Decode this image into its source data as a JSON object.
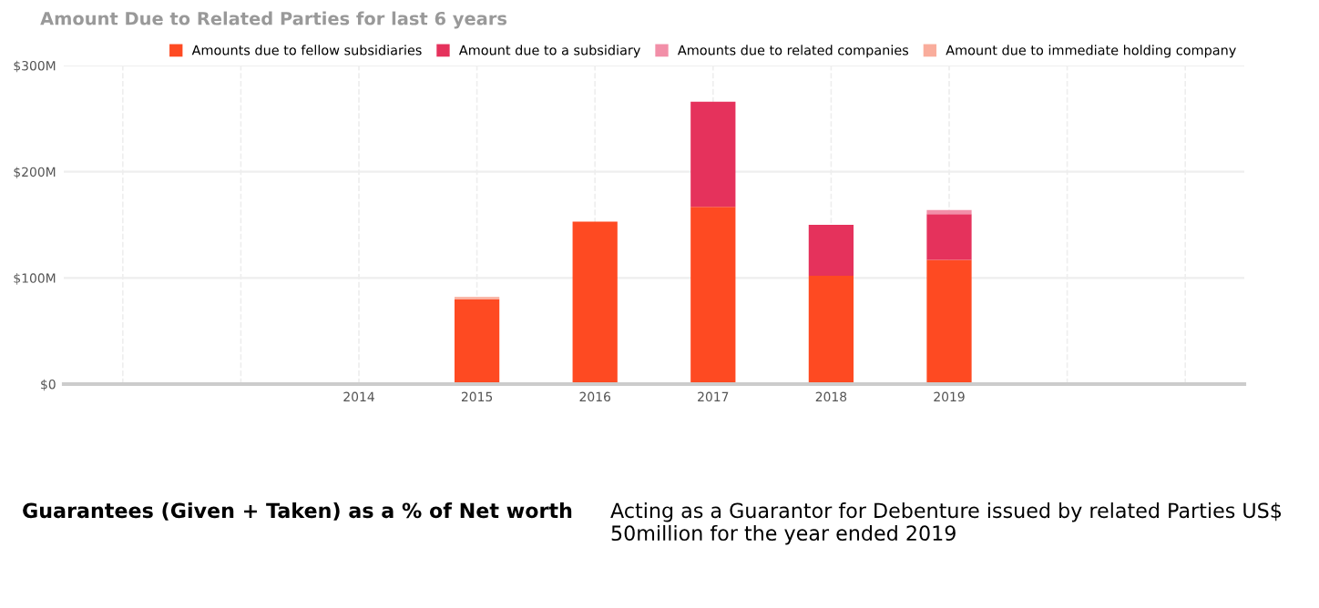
{
  "chart_data": {
    "type": "bar",
    "title": "Amount Due to Related Parties for last 6 years",
    "categories": [
      null,
      null,
      "2014",
      "2015",
      "2016",
      "2017",
      "2018",
      "2019",
      null,
      null
    ],
    "stacked": true,
    "series": [
      {
        "name": "Amounts due to fellow subsidiaries",
        "color": "#fe4a22",
        "values": [
          null,
          null,
          0,
          80,
          153,
          167,
          102,
          117,
          null,
          null
        ]
      },
      {
        "name": "Amount due to a subsidiary",
        "color": "#e5325c",
        "values": [
          null,
          null,
          0,
          0,
          0,
          99,
          48,
          43,
          null,
          null
        ]
      },
      {
        "name": "Amounts due to related companies",
        "color": "#f28fa8",
        "values": [
          null,
          null,
          0,
          0,
          0,
          0,
          0,
          4,
          null,
          null
        ]
      },
      {
        "name": "Amount due to immediate holding company",
        "color": "#f9ad9c",
        "values": [
          null,
          null,
          0,
          2,
          0,
          0,
          0,
          0,
          null,
          null
        ]
      }
    ],
    "ylim": [
      0,
      300
    ],
    "yticks": [
      {
        "value": 0,
        "label": "$0"
      },
      {
        "value": 100,
        "label": "$100M"
      },
      {
        "value": 200,
        "label": "$200M"
      },
      {
        "value": 300,
        "label": "$300M"
      }
    ],
    "grid": true,
    "legend": "top right",
    "annotations": [
      "Guarantees (Given + Taken) as a % of Net worth",
      "Acting as a Guarantor for Debenture issued by related Parties US$ 50million for the year ended 2019"
    ]
  }
}
